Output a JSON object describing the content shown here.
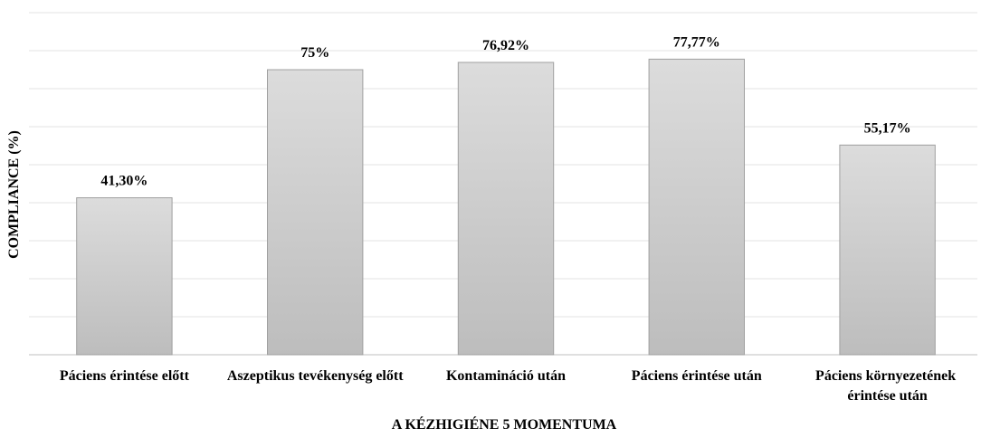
{
  "chart_data": {
    "type": "bar",
    "x_label": "A KÉZHIGIÉNE 5 MOMENTUMA",
    "y_label": "COMPLIANCE (%)",
    "categories": [
      "Páciens érintése előtt",
      "Aszeptikus tevékenység előtt",
      "Kontamináció után",
      "Páciens érintése után",
      "Páciens környezetének érintése után"
    ],
    "values": [
      41.3,
      75,
      76.92,
      77.77,
      55.17
    ],
    "value_labels": [
      "41,30%",
      "75%",
      "76,92%",
      "77,77%",
      "55,17%"
    ],
    "color": "#cccccc",
    "ylim": [
      0,
      90
    ],
    "yticks": [
      0,
      10,
      20,
      30,
      40,
      50,
      60,
      70,
      80,
      90
    ],
    "grid": true
  }
}
